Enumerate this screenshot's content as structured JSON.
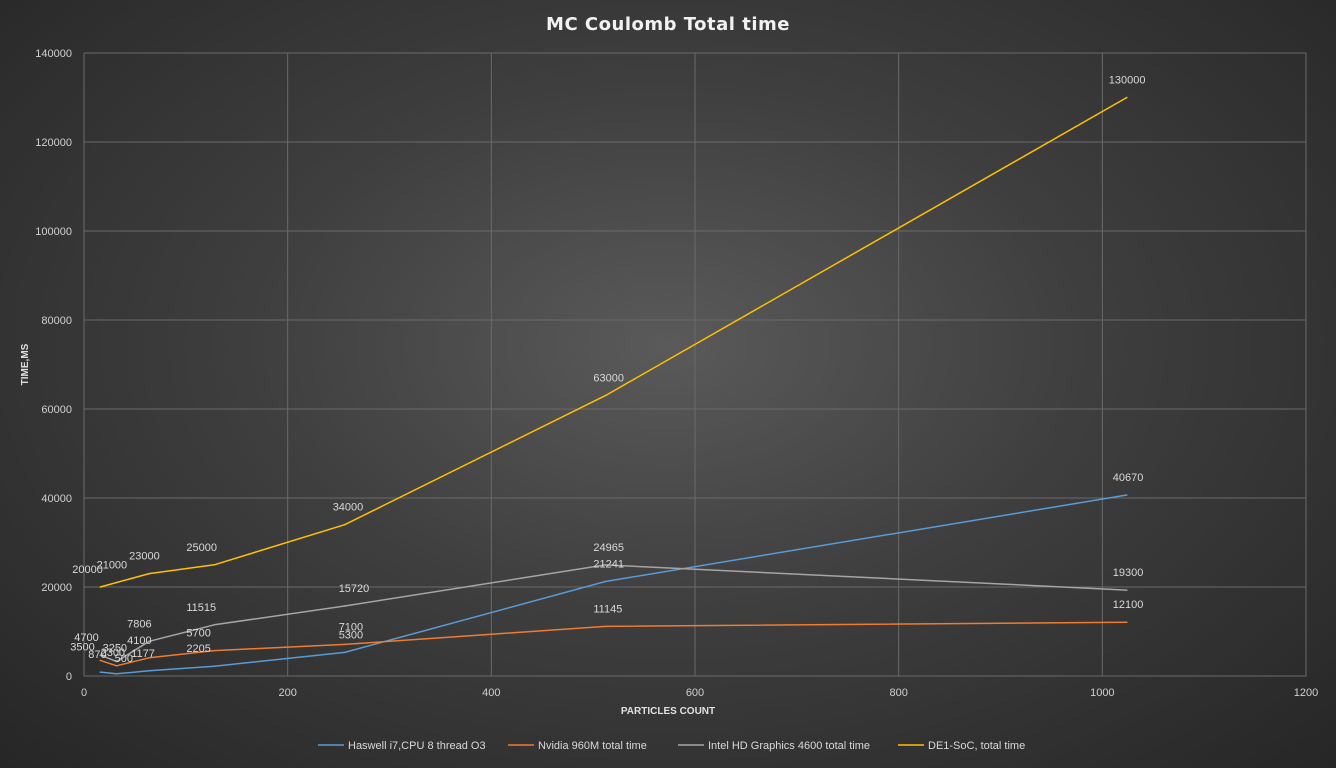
{
  "chart_data": {
    "type": "line",
    "title": "MC Coulomb  Total  time",
    "xlabel": "PARTICLES COUNT",
    "ylabel": "TIME,MS",
    "xlim": [
      0,
      1200
    ],
    "ylim": [
      0,
      140000
    ],
    "x_ticks": [
      "0",
      "200",
      "400",
      "600",
      "800",
      "1000",
      "1200"
    ],
    "y_ticks": [
      "0",
      "20000",
      "40000",
      "60000",
      "80000",
      "100000",
      "120000",
      "140000"
    ],
    "grid": true,
    "legend_position": "bottom",
    "series": [
      {
        "name": "Haswell i7,CPU 8 thread O3",
        "color": "#5b9bd5",
        "x": [
          16,
          32,
          64,
          128,
          256,
          512,
          1024
        ],
        "y": [
          870,
          500,
          1177,
          2205,
          5300,
          21241,
          40670
        ],
        "labels": [
          "870",
          "500",
          "1177",
          "2205",
          "5300",
          "21241",
          "40670"
        ]
      },
      {
        "name": "Nvidia 960M total time",
        "color": "#ed7d31",
        "x": [
          16,
          32,
          64,
          128,
          256,
          512,
          1024
        ],
        "y": [
          3500,
          2300,
          4100,
          5700,
          7100,
          11145,
          12100
        ],
        "labels": [
          "3500",
          "2300",
          "4100",
          "5700",
          "7100",
          "11145",
          "12100"
        ]
      },
      {
        "name": "Intel HD Graphics 4600 total time",
        "color": "#a5a5a5",
        "x": [
          16,
          32,
          64,
          128,
          256,
          512,
          1024
        ],
        "y": [
          4700,
          3250,
          7806,
          11515,
          15720,
          24965,
          19300
        ],
        "labels": [
          "4700",
          "3250",
          "7806",
          "11515",
          "15720",
          "24965",
          "19300"
        ]
      },
      {
        "name": "DE1-SoC, total time",
        "color": "#ffc000",
        "x": [
          16,
          32,
          64,
          128,
          256,
          512,
          1024
        ],
        "y": [
          20000,
          21000,
          23000,
          25000,
          34000,
          63000,
          130000
        ],
        "labels": [
          "20000",
          "21000",
          "23000",
          "25000",
          "34000",
          "63000",
          "130000"
        ]
      }
    ]
  }
}
